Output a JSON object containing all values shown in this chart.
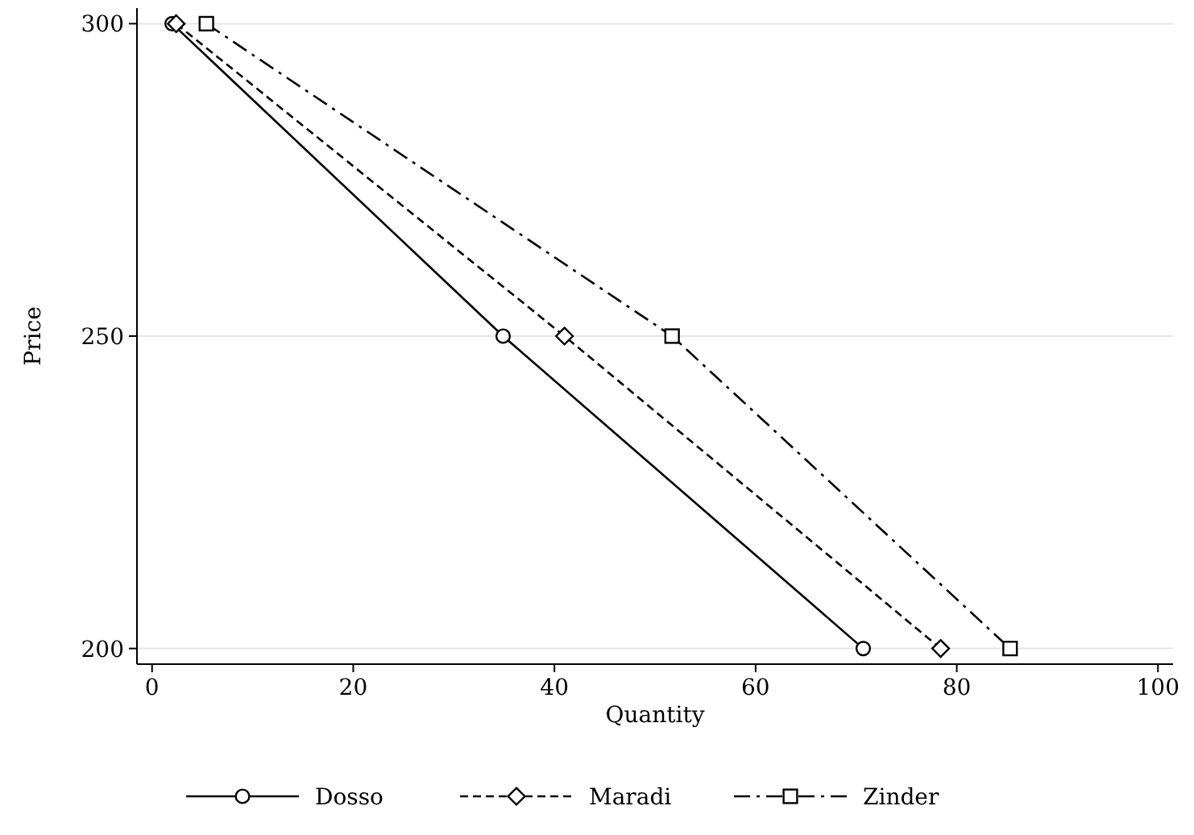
{
  "chart_data": {
    "type": "line",
    "xlabel": "Quantity",
    "ylabel": "Price",
    "xlim": [
      -1.5,
      101.5
    ],
    "ylim": [
      197.5,
      302.5
    ],
    "xticks": [
      0,
      20,
      40,
      60,
      80,
      100
    ],
    "yticks": [
      200,
      250,
      300
    ],
    "grid": "y",
    "legend": "bottom",
    "series": [
      {
        "name": "Dosso",
        "color": "#000000",
        "marker": "circle",
        "line_style": "solid",
        "x": [
          2.0,
          34.9,
          70.7
        ],
        "values": [
          300,
          250,
          200
        ]
      },
      {
        "name": "Maradi",
        "color": "#000000",
        "marker": "diamond",
        "line_style": "dashed",
        "x": [
          2.4,
          41.0,
          78.4
        ],
        "values": [
          300,
          250,
          200
        ]
      },
      {
        "name": "Zinder",
        "color": "#000000",
        "marker": "square",
        "line_style": "dashdot",
        "x": [
          5.4,
          51.7,
          85.3
        ],
        "values": [
          300,
          250,
          200
        ]
      }
    ]
  }
}
